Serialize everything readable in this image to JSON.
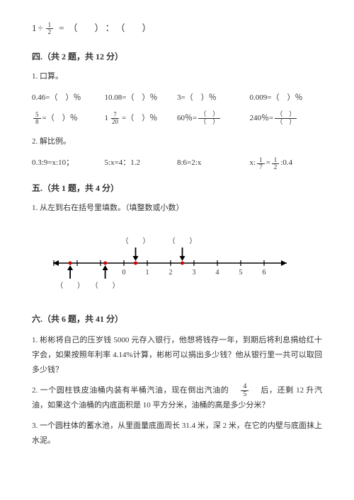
{
  "top_equation": {
    "whole": "1",
    "num": "1",
    "den": "2",
    "eq": "=",
    "lp1": "（",
    "rp1": "）",
    "colon": "：",
    "lp2": "（",
    "rp2": "）"
  },
  "section4": {
    "title": "四.（共 2 题，共 12 分）"
  },
  "q4_1": {
    "label": "1. 口算。"
  },
  "row1": {
    "c1": "0.46=（　）％",
    "c2": "10.08=（　）％",
    "c3": "3=（　）％",
    "c4": "0.009=（　）％"
  },
  "row2": {
    "f1n": "5",
    "f1d": "8",
    "c1suf": " =（　）％",
    "c2pre": "1",
    "f2n": "7",
    "f2d": "20",
    "c2suf": "=（　）％",
    "c3pre": "60％=",
    "c4pre": "240％="
  },
  "q4_2": {
    "label": "2. 解比例。"
  },
  "ratio_row": {
    "c1": "0.3:9=x:10；",
    "c2": "5:x=4：1.2",
    "c3": "8:6=2:x",
    "c4a": "x:",
    "f4n1": "1",
    "f4d1": "7",
    "mid": "=",
    "f4n2": "1",
    "f4d2": "2",
    "c4b": ":0.4"
  },
  "section5": {
    "title": "五.（共 1 题，共 4 分）"
  },
  "q5_1": {
    "label": "1. 从左到右在括号里填数。（填整数或小数）"
  },
  "numberline": {
    "ticks": [
      "0",
      "1",
      "2",
      "3",
      "4",
      "5",
      "6"
    ],
    "paren_top": [
      "（　　）",
      "（　　）"
    ],
    "paren_bot": {
      "left": [
        "（　　）",
        "（　　）"
      ]
    },
    "dot_color": "#cc0000"
  },
  "section6": {
    "title": "六.（共 6 题，共 41 分）"
  },
  "q6_1": "1. 彬彬将自己的压岁钱 5000 元存入银行，他想将钱存一年，到期后将利息捐给红十字会，如果按照年利率 4.14%计算，彬彬可以捐出多少钱？他从银行里一共可以取回多少钱？",
  "q6_2a": "2. 一个圆柱铁皮油桶内装有半桶汽油，现在倒出汽油的　",
  "q6_2_fn": "4",
  "q6_2_fd": "5",
  "q6_2b": "　后，还剩 12 升汽油，如果这个油桶的内底面积是 10 平方分米，油桶的高是多少分米？",
  "q6_3": "3. 一个圆柱体的蓄水池，从里面量底面周长 31.4 米，深 2 米，在它的内壁与底面抹上水泥。"
}
